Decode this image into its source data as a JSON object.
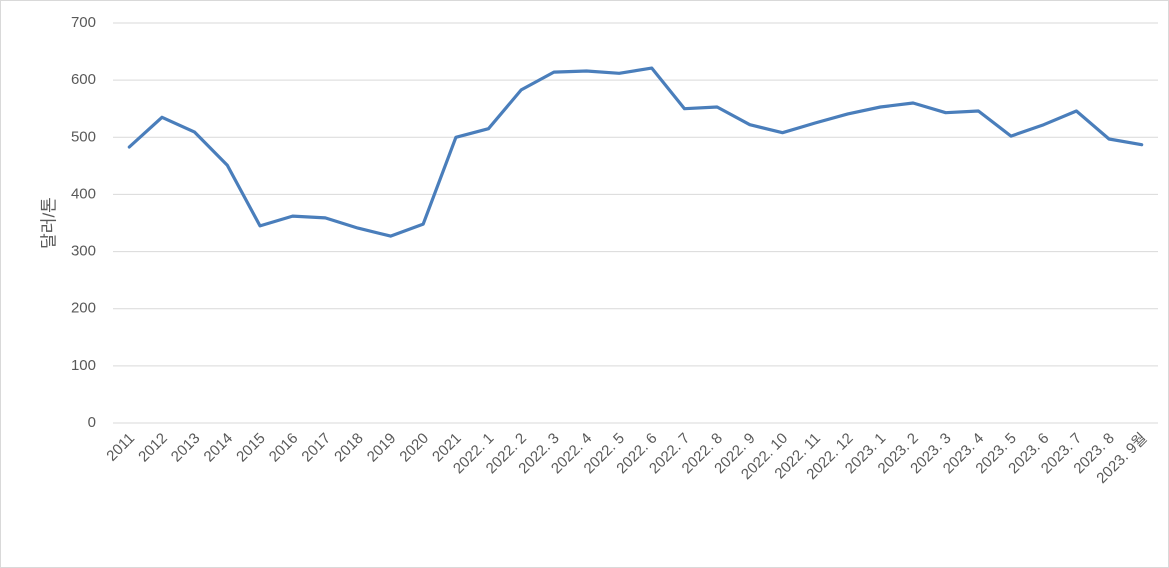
{
  "chart_data": {
    "type": "line",
    "y_axis_label": "달러/톤",
    "categories": [
      "2011",
      "2012",
      "2013",
      "2014",
      "2015",
      "2016",
      "2017",
      "2018",
      "2019",
      "2020",
      "2021",
      "2022. 1",
      "2022. 2",
      "2022. 3",
      "2022. 4",
      "2022. 5",
      "2022. 6",
      "2022. 7",
      "2022. 8",
      "2022. 9",
      "2022. 10",
      "2022. 11",
      "2022. 12",
      "2023. 1",
      "2023. 2",
      "2023. 3",
      "2023. 4",
      "2023. 5",
      "2023. 6",
      "2023. 7",
      "2023. 8",
      "2023. 9월"
    ],
    "values": [
      483,
      535,
      509,
      451,
      345,
      362,
      359,
      341,
      327,
      348,
      500,
      515,
      583,
      614,
      616,
      612,
      621,
      550,
      553,
      522,
      508,
      525,
      541,
      553,
      560,
      543,
      546,
      502,
      522,
      546,
      497,
      487
    ],
    "color": "#4a7ebb",
    "ylim": [
      0,
      700
    ],
    "yticks": [
      0,
      100,
      200,
      300,
      400,
      500,
      600,
      700
    ],
    "grid": true
  }
}
